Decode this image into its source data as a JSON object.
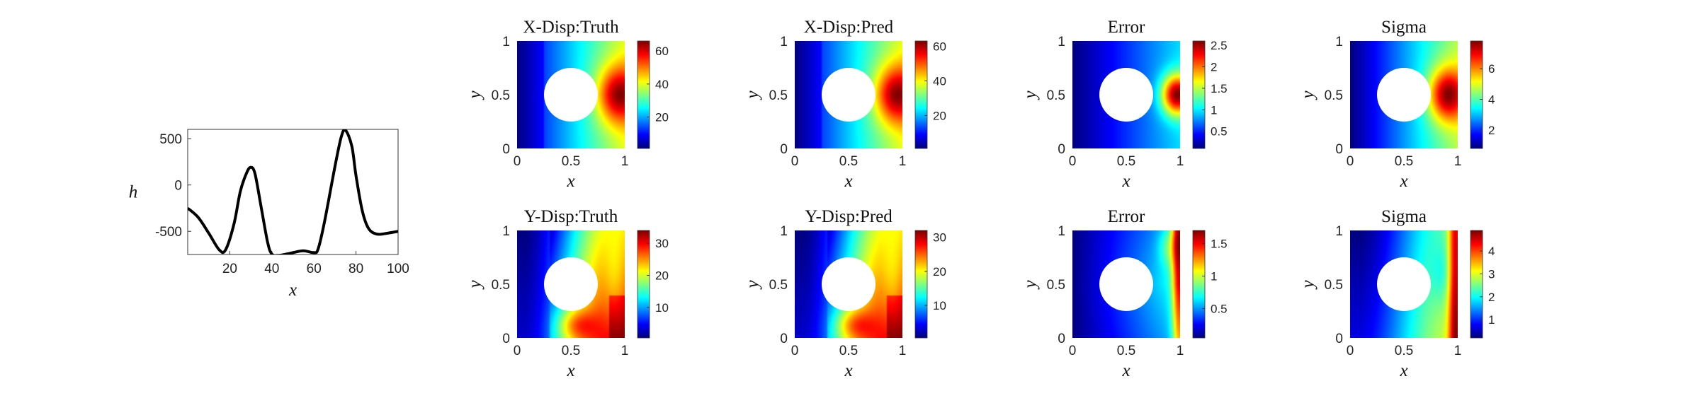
{
  "chart_data": [
    {
      "type": "line",
      "xlabel": "x",
      "ylabel": "h",
      "xlim": [
        0,
        100
      ],
      "ylim": [
        -750,
        600
      ],
      "xticks": [
        "20",
        "40",
        "60",
        "80",
        "100"
      ],
      "yticks": [
        "500",
        "0",
        "-500"
      ],
      "series": [
        {
          "x": [
            0,
            5,
            10,
            15,
            18,
            22,
            25,
            28,
            30,
            32,
            35,
            38,
            40,
            43,
            47,
            50,
            55,
            60,
            62,
            65,
            70,
            73,
            75,
            78,
            80,
            83,
            86,
            90,
            95,
            100
          ],
          "values": [
            -250,
            -350,
            -520,
            -700,
            -700,
            -420,
            -70,
            130,
            190,
            120,
            -250,
            -620,
            -745,
            -760,
            -745,
            -730,
            -710,
            -730,
            -690,
            -400,
            200,
            520,
            590,
            420,
            100,
            -280,
            -470,
            -530,
            -520,
            -500
          ]
        }
      ]
    },
    {
      "type": "heatmap",
      "title": "X-Disp:Truth",
      "field": "xdisp",
      "xlabel": "x",
      "ylabel": "y",
      "xlim": [
        0,
        1
      ],
      "ylim": [
        0,
        1
      ],
      "xticks": [
        "0",
        "0.5",
        "1"
      ],
      "yticks": [
        "0",
        "0.5",
        "1"
      ],
      "clim": [
        1,
        66
      ],
      "cbticks": [
        "20",
        "40",
        "60"
      ],
      "colormap": "jet"
    },
    {
      "type": "heatmap",
      "title": "X-Disp:Pred",
      "field": "xdisp",
      "xlabel": "x",
      "ylabel": "y",
      "xlim": [
        0,
        1
      ],
      "ylim": [
        0,
        1
      ],
      "xticks": [
        "0",
        "0.5",
        "1"
      ],
      "yticks": [
        "0",
        "0.5",
        "1"
      ],
      "clim": [
        1,
        63
      ],
      "cbticks": [
        "20",
        "40",
        "60"
      ],
      "colormap": "jet"
    },
    {
      "type": "heatmap",
      "title": "Error",
      "field": "xerr",
      "xlabel": "x",
      "ylabel": "y",
      "xlim": [
        0,
        1
      ],
      "ylim": [
        0,
        1
      ],
      "xticks": [
        "0",
        "0.5",
        "1"
      ],
      "yticks": [
        "0",
        "0.5",
        "1"
      ],
      "clim": [
        0.1,
        2.6
      ],
      "cbticks": [
        "0.5",
        "1",
        "1.5",
        "2",
        "2.5"
      ],
      "colormap": "jet"
    },
    {
      "type": "heatmap",
      "title": "Sigma",
      "field": "xsig",
      "xlabel": "x",
      "ylabel": "y",
      "xlim": [
        0,
        1
      ],
      "ylim": [
        0,
        1
      ],
      "xticks": [
        "0",
        "0.5",
        "1"
      ],
      "yticks": [
        "0",
        "0.5",
        "1"
      ],
      "clim": [
        0.8,
        7.8
      ],
      "cbticks": [
        "2",
        "4",
        "6"
      ],
      "colormap": "jet"
    },
    {
      "type": "heatmap",
      "title": "Y-Disp:Truth",
      "field": "ydisp",
      "xlabel": "x",
      "ylabel": "y",
      "xlim": [
        0,
        1
      ],
      "ylim": [
        0,
        1
      ],
      "xticks": [
        "0",
        "0.5",
        "1"
      ],
      "yticks": [
        "0",
        "0.5",
        "1"
      ],
      "clim": [
        0.5,
        34
      ],
      "cbticks": [
        "10",
        "20",
        "30"
      ],
      "colormap": "jet"
    },
    {
      "type": "heatmap",
      "title": "Y-Disp:Pred",
      "field": "ydisp",
      "xlabel": "x",
      "ylabel": "y",
      "xlim": [
        0,
        1
      ],
      "ylim": [
        0,
        1
      ],
      "xticks": [
        "0",
        "0.5",
        "1"
      ],
      "yticks": [
        "0",
        "0.5",
        "1"
      ],
      "clim": [
        0.5,
        32
      ],
      "cbticks": [
        "10",
        "20",
        "30"
      ],
      "colormap": "jet"
    },
    {
      "type": "heatmap",
      "title": "Error",
      "field": "yerr",
      "xlabel": "x",
      "ylabel": "y",
      "xlim": [
        0,
        1
      ],
      "ylim": [
        0,
        1
      ],
      "xticks": [
        "0",
        "0.5",
        "1"
      ],
      "yticks": [
        "0",
        "0.5",
        "1"
      ],
      "clim": [
        0.05,
        1.7
      ],
      "cbticks": [
        "0.5",
        "1",
        "1.5"
      ],
      "colormap": "jet"
    },
    {
      "type": "heatmap",
      "title": "Sigma",
      "field": "ysig",
      "xlabel": "x",
      "ylabel": "y",
      "xlim": [
        0,
        1
      ],
      "ylim": [
        0,
        1
      ],
      "xticks": [
        "0",
        "0.5",
        "1"
      ],
      "yticks": [
        "0",
        "0.5",
        "1"
      ],
      "clim": [
        0.2,
        4.9
      ],
      "cbticks": [
        "1",
        "2",
        "3",
        "4"
      ],
      "colormap": "jet"
    }
  ]
}
